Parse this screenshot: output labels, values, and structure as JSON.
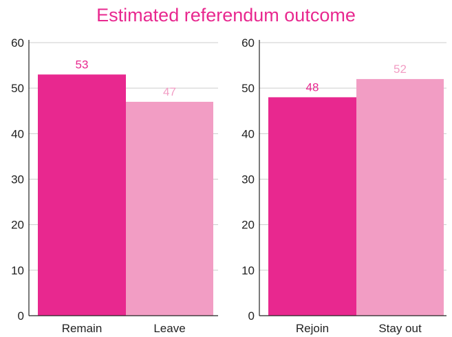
{
  "title": "Estimated referendum outcome",
  "colors": {
    "title": "#e8288f",
    "primary": "#e8288f",
    "secondary": "#f29dc4",
    "axis": "#222222",
    "grid": "#cccccc"
  },
  "chart_data": [
    {
      "type": "bar",
      "categories": [
        "Remain",
        "Leave"
      ],
      "values": [
        53,
        47
      ],
      "data_labels": [
        "53",
        "47"
      ],
      "bar_colors": [
        "#e8288f",
        "#f29dc4"
      ],
      "ylim": [
        0,
        60
      ],
      "yticks": [
        0,
        10,
        20,
        30,
        40,
        50,
        60
      ],
      "grid": true
    },
    {
      "type": "bar",
      "categories": [
        "Rejoin",
        "Stay out"
      ],
      "values": [
        48,
        52
      ],
      "data_labels": [
        "48",
        "52"
      ],
      "bar_colors": [
        "#e8288f",
        "#f29dc4"
      ],
      "ylim": [
        0,
        60
      ],
      "yticks": [
        0,
        10,
        20,
        30,
        40,
        50,
        60
      ],
      "grid": true
    }
  ]
}
